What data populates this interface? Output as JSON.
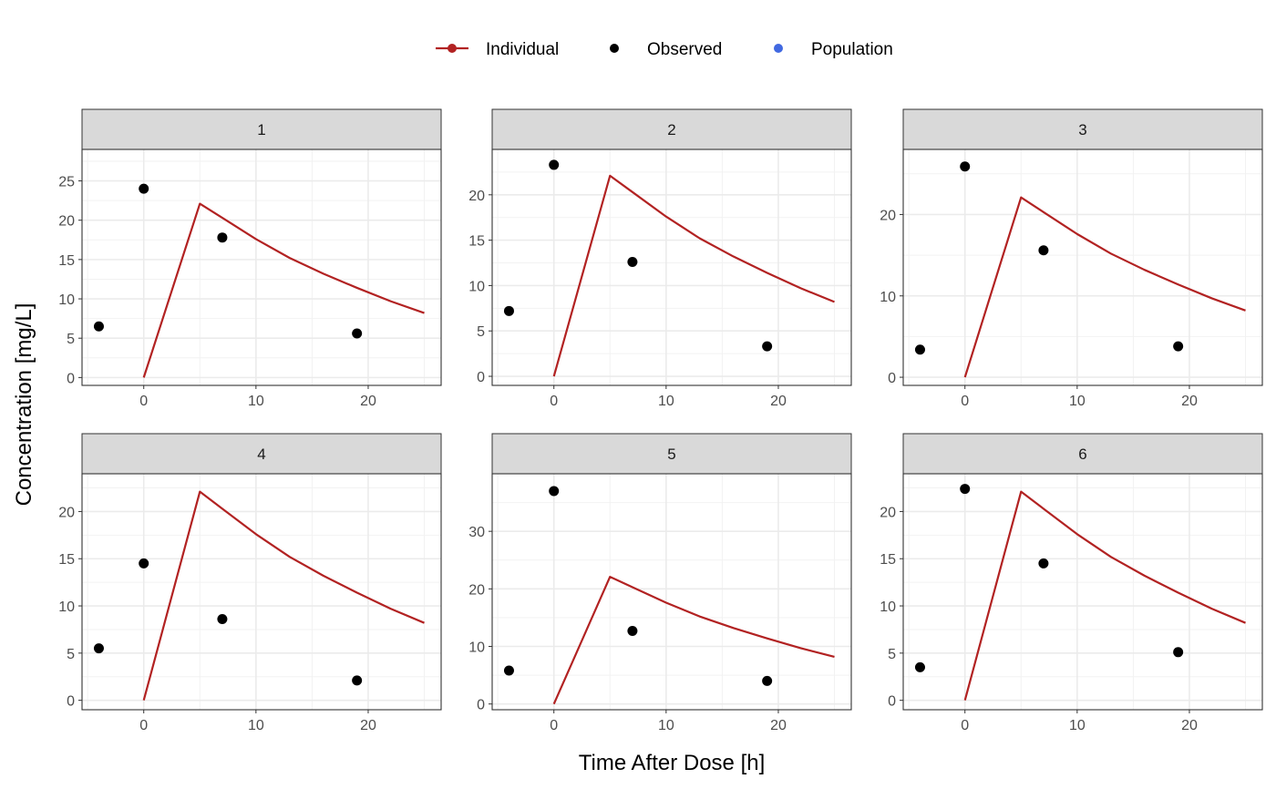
{
  "chart_data": {
    "type": "line",
    "xlabel": "Time After Dose [h]",
    "ylabel": "Concentration [mg/L]",
    "grid": true,
    "legend": {
      "placement": "top",
      "entries": [
        {
          "label": "Individual",
          "color": "#b22222",
          "kind": "line-point"
        },
        {
          "label": "Observed",
          "color": "#000000",
          "kind": "point"
        },
        {
          "label": "Population",
          "color": "#4169e1",
          "kind": "point"
        }
      ]
    },
    "colors": {
      "individual": "#b22222",
      "observed": "#000000",
      "population": "#4169e1"
    },
    "x_ticks": [
      0,
      10,
      20
    ],
    "xlim": [
      -5.5,
      26.5
    ],
    "individual_curve": {
      "x": [
        0,
        5,
        7,
        10,
        13,
        16,
        19,
        22,
        25
      ],
      "y": [
        0,
        22.1,
        20.3,
        17.6,
        15.2,
        13.2,
        11.4,
        9.7,
        8.2
      ]
    },
    "panels": [
      {
        "label": "1",
        "ylim": [
          -1,
          29
        ],
        "y_ticks": [
          0,
          5,
          10,
          15,
          20,
          25
        ],
        "observed": {
          "x": [
            -4,
            0,
            7,
            19
          ],
          "y": [
            6.5,
            24,
            17.8,
            5.6
          ]
        }
      },
      {
        "label": "2",
        "ylim": [
          -1,
          25
        ],
        "y_ticks": [
          0,
          5,
          10,
          15,
          20
        ],
        "observed": {
          "x": [
            -4,
            0,
            7,
            19
          ],
          "y": [
            7.2,
            23.3,
            12.6,
            3.3
          ]
        }
      },
      {
        "label": "3",
        "ylim": [
          -1,
          28
        ],
        "y_ticks": [
          0,
          10,
          20
        ],
        "observed": {
          "x": [
            -4,
            0,
            7,
            19
          ],
          "y": [
            3.4,
            25.9,
            15.6,
            3.8
          ]
        }
      },
      {
        "label": "4",
        "ylim": [
          -1,
          24
        ],
        "y_ticks": [
          0,
          5,
          10,
          15,
          20
        ],
        "observed": {
          "x": [
            -4,
            0,
            7,
            19
          ],
          "y": [
            5.5,
            14.5,
            8.6,
            2.1
          ]
        }
      },
      {
        "label": "5",
        "ylim": [
          -1,
          40
        ],
        "y_ticks": [
          0,
          10,
          20,
          30
        ],
        "observed": {
          "x": [
            -4,
            0,
            7,
            19
          ],
          "y": [
            5.8,
            37,
            12.7,
            4.0
          ]
        }
      },
      {
        "label": "6",
        "ylim": [
          -1,
          24
        ],
        "y_ticks": [
          0,
          5,
          10,
          15,
          20
        ],
        "observed": {
          "x": [
            -4,
            0,
            7,
            19
          ],
          "y": [
            3.5,
            22.4,
            14.5,
            5.1
          ]
        }
      }
    ]
  }
}
